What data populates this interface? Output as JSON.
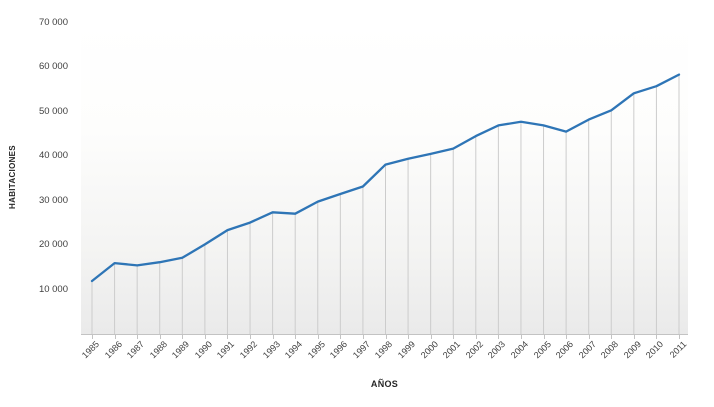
{
  "chart": {
    "line_color": "#2e75b6",
    "dropline_color": "#cccccc",
    "axis_line_color": "#c3c3c3",
    "tick_label_color": "#404040",
    "plot_bg_top": "#ffffff",
    "plot_bg_bottom": "#eaeaea"
  },
  "chart_data": {
    "type": "line",
    "title": "",
    "xlabel": "AÑOS",
    "ylabel": "HABITACIONES",
    "categories": [
      "1985",
      "1986",
      "1987",
      "1988",
      "1989",
      "1990",
      "1991",
      "1992",
      "1993",
      "1994",
      "1995",
      "1996",
      "1997",
      "1998",
      "1999",
      "2000",
      "2001",
      "2002",
      "2003",
      "2004",
      "2005",
      "2006",
      "2007",
      "2008",
      "2009",
      "2010",
      "2011"
    ],
    "values": [
      11900,
      15900,
      15400,
      16100,
      17100,
      20100,
      23300,
      25000,
      27300,
      27000,
      29700,
      31400,
      33100,
      38000,
      39300,
      40400,
      41600,
      44400,
      46800,
      47600,
      46800,
      45400,
      48100,
      50200,
      54000,
      55600,
      58200
    ],
    "ylim": [
      0,
      70000
    ],
    "y_ticks": [
      {
        "label": "70 000",
        "value": 70000
      },
      {
        "label": "60 000",
        "value": 60000
      },
      {
        "label": "50 000",
        "value": 50000
      },
      {
        "label": "40 000",
        "value": 40000
      },
      {
        "label": "30 000",
        "value": 30000
      },
      {
        "label": "20 000",
        "value": 20000
      },
      {
        "label": "10 000",
        "value": 10000
      }
    ],
    "grid": "vertical drop lines from each data point to x axis, no horizontal gridlines",
    "legend": "none"
  }
}
